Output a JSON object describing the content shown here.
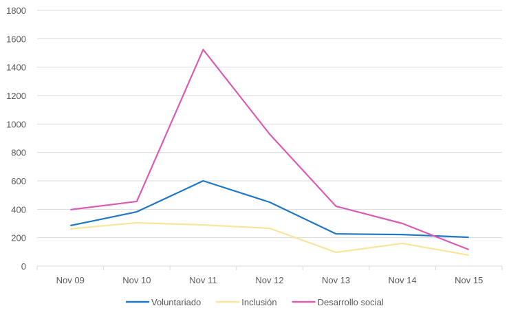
{
  "chart_data": {
    "type": "line",
    "title": "",
    "xlabel": "",
    "ylabel": "",
    "categories": [
      "Nov 09",
      "Nov 10",
      "Nov 11",
      "Nov 12",
      "Nov 13",
      "Nov 14",
      "Nov 15"
    ],
    "ylim": [
      0,
      1800
    ],
    "yticks": [
      "0",
      "200",
      "400",
      "600",
      "800",
      "1000",
      "1200",
      "1400",
      "1600",
      "1800"
    ],
    "grid": true,
    "legend_position": "bottom",
    "series": [
      {
        "name": "Voluntariado",
        "color": "#1f77c4",
        "values": [
          285,
          382,
          600,
          450,
          227,
          222,
          203
        ]
      },
      {
        "name": "Inclusión",
        "color": "#f9e59a",
        "values": [
          262,
          305,
          290,
          266,
          97,
          160,
          77
        ]
      },
      {
        "name": "Desarrollo social",
        "color": "#d95bb5",
        "values": [
          397,
          455,
          1524,
          929,
          421,
          300,
          116
        ]
      }
    ]
  }
}
